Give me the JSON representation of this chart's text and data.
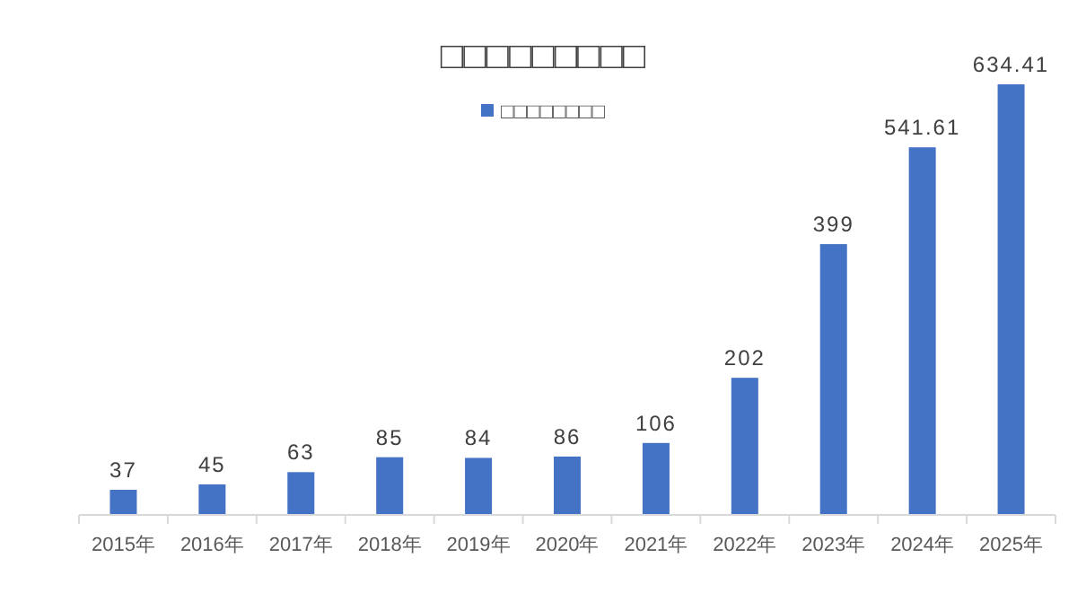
{
  "chart_data": {
    "type": "bar",
    "title": "□□□□□□□□□",
    "categories": [
      "2015年",
      "2016年",
      "2017年",
      "2018年",
      "2019年",
      "2020年",
      "2021年",
      "2022年",
      "2023年",
      "2024年",
      "2025年"
    ],
    "series": [
      {
        "name": "□□□□□□□□",
        "color": "#4472c4",
        "values": [
          37,
          45,
          63,
          85,
          84,
          86,
          106,
          202,
          399,
          541.61,
          634.41
        ]
      }
    ],
    "data_labels": true,
    "legend": "top"
  }
}
